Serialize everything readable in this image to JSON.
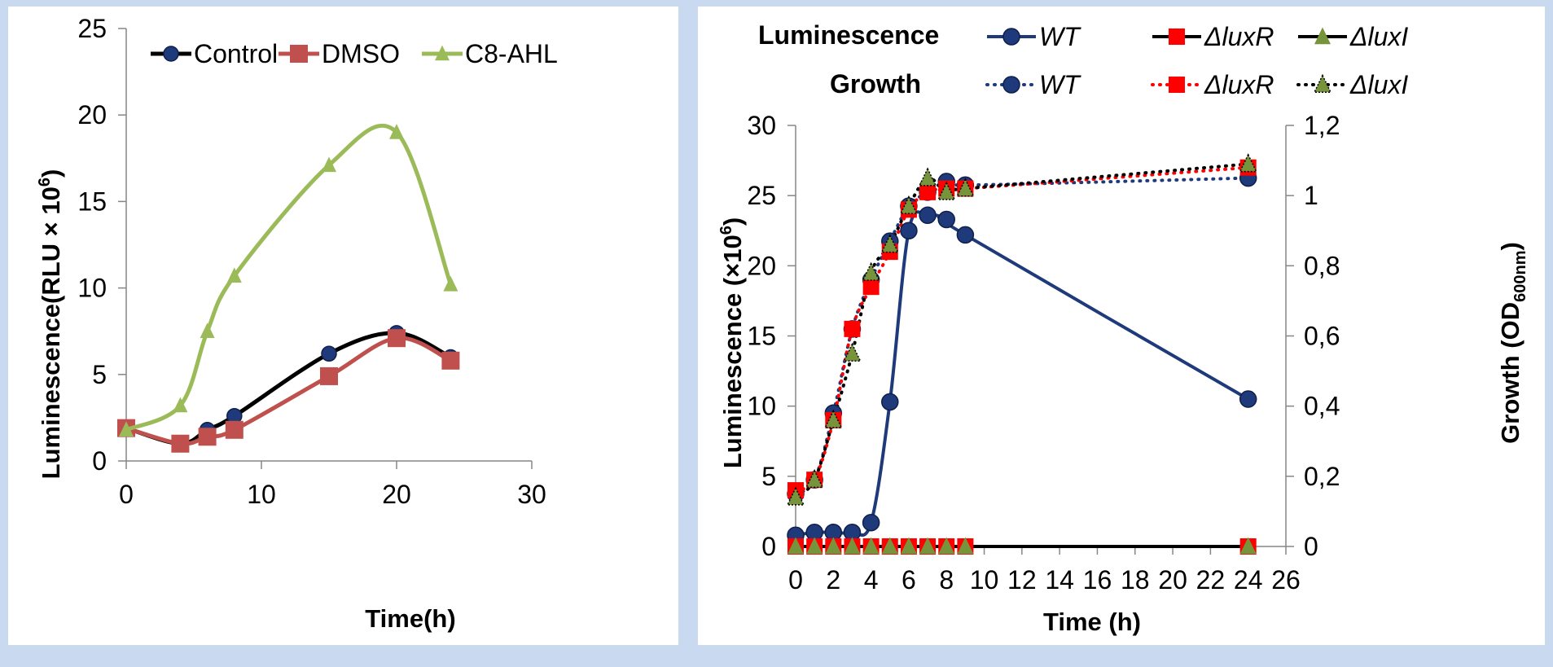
{
  "chart_data": [
    {
      "type": "line",
      "title": "",
      "xlabel": "Time(h)",
      "ylabel": "Luminescence(RLU × 10",
      "ylabel_sup": "6",
      "ylabel_tail": ")",
      "xlim": [
        0,
        30
      ],
      "ylim": [
        0,
        25
      ],
      "xticks": [
        0,
        10,
        20,
        30
      ],
      "yticks": [
        0,
        5,
        10,
        15,
        20,
        25
      ],
      "legend_position": "top",
      "grid": false,
      "series": [
        {
          "name": "Control",
          "color": "#000000",
          "marker_color": "#1f3a7a",
          "marker": "circle",
          "x": [
            0,
            4,
            6,
            8,
            15,
            20,
            24
          ],
          "y": [
            1.9,
            1.0,
            1.8,
            2.6,
            6.2,
            7.4,
            6.0
          ]
        },
        {
          "name": "DMSO",
          "color": "#c0504d",
          "marker_color": "#c0504d",
          "marker": "square",
          "x": [
            0,
            4,
            6,
            8,
            15,
            20,
            24
          ],
          "y": [
            1.9,
            1.0,
            1.4,
            1.8,
            4.9,
            7.1,
            5.8
          ]
        },
        {
          "name": "C8-AHL",
          "color": "#9bbb59",
          "marker_color": "#9bbb59",
          "marker": "triangle",
          "x": [
            0,
            4,
            6,
            8,
            15,
            20,
            24
          ],
          "y": [
            1.8,
            3.2,
            7.5,
            10.7,
            17.1,
            19.0,
            10.2
          ]
        }
      ]
    },
    {
      "type": "line",
      "title": "",
      "xlabel": "Time (h)",
      "ylabel": "Luminescence (×10",
      "ylabel_sup": "6",
      "ylabel_tail": ")",
      "y2label": "Growth (OD",
      "y2label_sub": "600nm",
      "y2label_tail": ")",
      "xlim": [
        0,
        26
      ],
      "ylim": [
        0,
        30
      ],
      "y2lim": [
        0,
        1.2
      ],
      "xticks": [
        0,
        2,
        4,
        6,
        8,
        10,
        12,
        14,
        16,
        18,
        20,
        22,
        24,
        26
      ],
      "yticks": [
        0,
        5,
        10,
        15,
        20,
        25,
        30
      ],
      "y2ticks": [
        "0",
        "0,2",
        "0,4",
        "0,6",
        "0,8",
        "1",
        "1,2"
      ],
      "y2tick_values": [
        0,
        0.2,
        0.4,
        0.6,
        0.8,
        1.0,
        1.2
      ],
      "legend_position": "top",
      "legend_groups": {
        "luminescence": "Luminescence",
        "growth": "Growth"
      },
      "grid": false,
      "luminescence_series": [
        {
          "name": "WT",
          "color": "#1f3a7a",
          "marker": "circle",
          "x": [
            0,
            1,
            2,
            3,
            4,
            5,
            6,
            7,
            8,
            9,
            24
          ],
          "y": [
            0.8,
            1.0,
            1.0,
            1.0,
            1.7,
            10.3,
            22.5,
            23.6,
            23.3,
            22.2,
            10.5
          ]
        },
        {
          "name": "ΔluxR",
          "color": "#000000",
          "marker_color": "#ff0000",
          "marker": "square",
          "x": [
            0,
            1,
            2,
            3,
            4,
            5,
            6,
            7,
            8,
            9,
            24
          ],
          "y": [
            0,
            0,
            0,
            0,
            0,
            0,
            0,
            0,
            0,
            0,
            0
          ]
        },
        {
          "name": "ΔluxI",
          "color": "#000000",
          "marker_color": "#77933c",
          "marker": "triangle",
          "x": [
            0,
            1,
            2,
            3,
            4,
            5,
            6,
            7,
            8,
            9,
            24
          ],
          "y": [
            0,
            0,
            0,
            0,
            0,
            0,
            0,
            0,
            0,
            0,
            0
          ]
        }
      ],
      "growth_series": [
        {
          "name": "WT",
          "color": "#1f3a7a",
          "marker": "circle",
          "x": [
            0,
            1,
            2,
            3,
            4,
            5,
            6,
            7,
            8,
            9,
            24
          ],
          "y": [
            0.15,
            0.19,
            0.38,
            0.62,
            0.76,
            0.87,
            0.97,
            1.01,
            1.04,
            1.03,
            1.05
          ]
        },
        {
          "name": "ΔluxR",
          "color": "#ff0000",
          "marker": "square",
          "x": [
            0,
            1,
            2,
            3,
            4,
            5,
            6,
            7,
            8,
            9,
            24
          ],
          "y": [
            0.16,
            0.19,
            0.36,
            0.62,
            0.74,
            0.84,
            0.96,
            1.01,
            1.02,
            1.02,
            1.08
          ]
        },
        {
          "name": "ΔluxI",
          "color": "#000000",
          "marker_color": "#77933c",
          "marker": "triangle",
          "x": [
            0,
            1,
            2,
            3,
            4,
            5,
            6,
            7,
            8,
            9,
            24
          ],
          "y": [
            0.14,
            0.19,
            0.36,
            0.55,
            0.78,
            0.86,
            0.97,
            1.05,
            1.01,
            1.02,
            1.09
          ]
        }
      ]
    }
  ]
}
